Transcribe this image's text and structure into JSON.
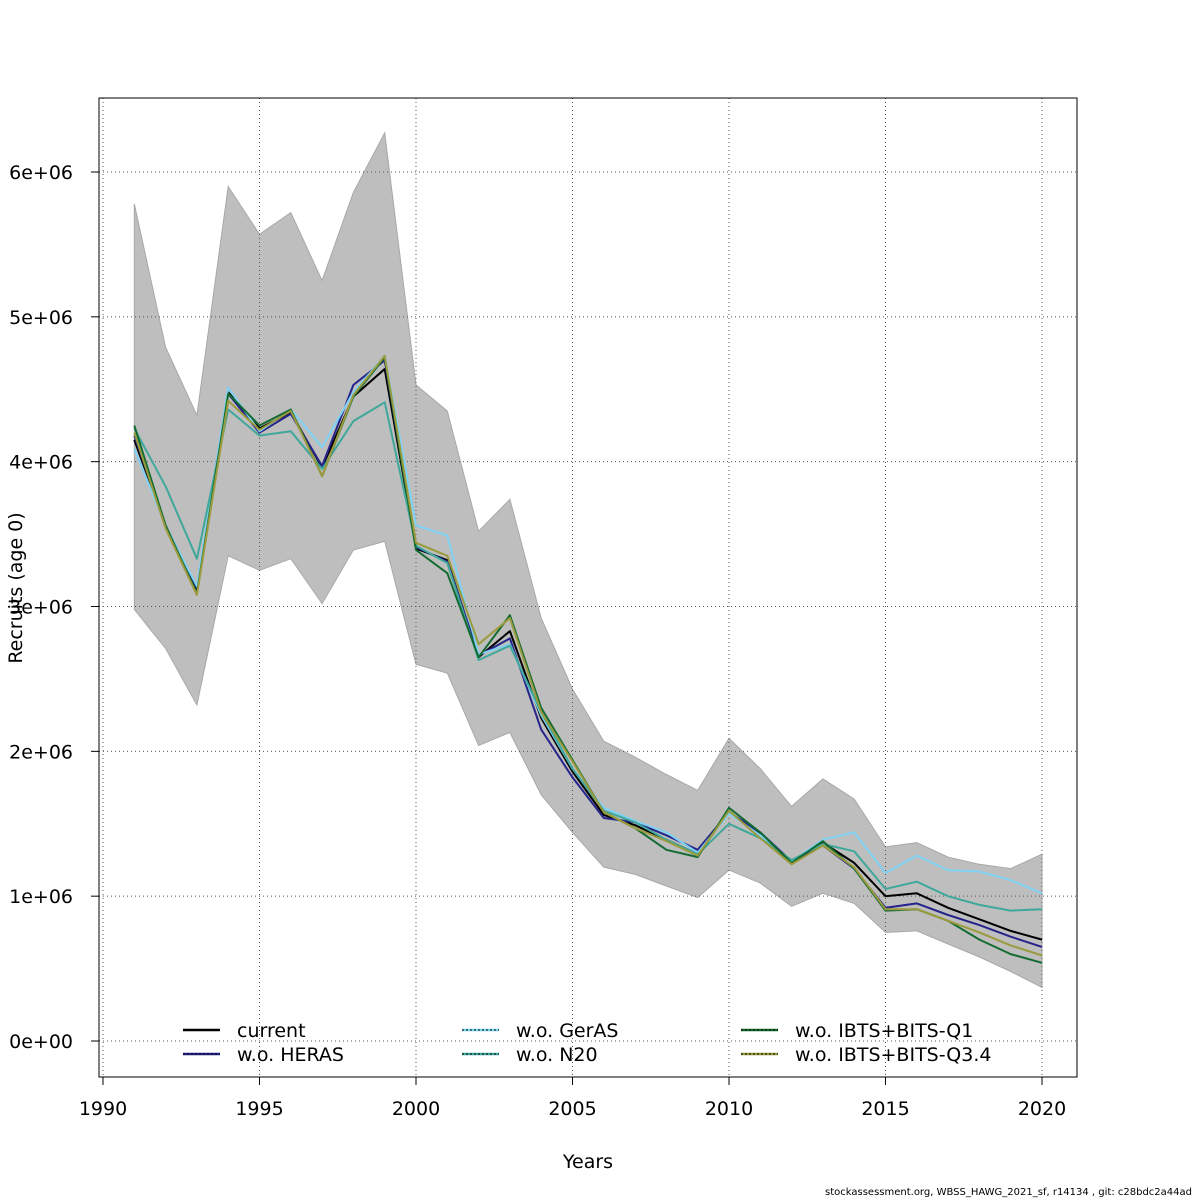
{
  "chart_data": {
    "type": "line",
    "title": "",
    "xlabel": "Years",
    "ylabel": "Recruits (age 0)",
    "xlim": [
      1990,
      2021
    ],
    "ylim": [
      -250000,
      6500000
    ],
    "xticks": [
      1990,
      1995,
      2000,
      2005,
      2010,
      2015,
      2020
    ],
    "yticks": [
      0,
      1000000,
      2000000,
      3000000,
      4000000,
      5000000,
      6000000
    ],
    "ytick_labels": [
      "0e+00",
      "1e+06",
      "2e+06",
      "3e+06",
      "4e+06",
      "5e+06",
      "6e+06"
    ],
    "grid": true,
    "legend_position": "bottom",
    "x": [
      1991,
      1992,
      1993,
      1994,
      1995,
      1996,
      1997,
      1998,
      1999,
      2000,
      2001,
      2002,
      2003,
      2004,
      2005,
      2006,
      2007,
      2008,
      2009,
      2010,
      2011,
      2012,
      2013,
      2014,
      2015,
      2016,
      2017,
      2018,
      2019,
      2020
    ],
    "confidence_band": {
      "color": "#bebebe",
      "lower": [
        2980000,
        2710000,
        2320000,
        3350000,
        3250000,
        3330000,
        3020000,
        3390000,
        3450000,
        2600000,
        2540000,
        2040000,
        2130000,
        1700000,
        1440000,
        1200000,
        1150000,
        1070000,
        990000,
        1180000,
        1090000,
        930000,
        1020000,
        950000,
        750000,
        760000,
        670000,
        580000,
        480000,
        370000
      ],
      "upper": [
        5780000,
        4790000,
        4320000,
        5900000,
        5570000,
        5720000,
        5250000,
        5860000,
        6270000,
        4530000,
        4350000,
        3520000,
        3740000,
        2920000,
        2430000,
        2070000,
        1960000,
        1840000,
        1730000,
        2090000,
        1880000,
        1620000,
        1810000,
        1670000,
        1340000,
        1370000,
        1270000,
        1220000,
        1190000,
        1290000
      ]
    },
    "series": [
      {
        "name": "current",
        "color": "#000000",
        "dash": "",
        "values": [
          4150000,
          3560000,
          3120000,
          4480000,
          4230000,
          4340000,
          3960000,
          4450000,
          4640000,
          3400000,
          3320000,
          2650000,
          2830000,
          2230000,
          1860000,
          1560000,
          1490000,
          1390000,
          1290000,
          1580000,
          1430000,
          1230000,
          1370000,
          1230000,
          1000000,
          1020000,
          920000,
          840000,
          760000,
          700000
        ]
      },
      {
        "name": "w.o. HERAS",
        "color": "#26248a",
        "dash": "",
        "values": [
          4180000,
          3560000,
          3130000,
          4470000,
          4200000,
          4330000,
          3970000,
          4530000,
          4700000,
          3410000,
          3310000,
          2660000,
          2780000,
          2150000,
          1820000,
          1540000,
          1510000,
          1420000,
          1320000,
          1580000,
          1440000,
          1240000,
          1350000,
          1190000,
          920000,
          950000,
          870000,
          800000,
          720000,
          650000
        ]
      },
      {
        "name": "w.o. GerAS",
        "color": "#7fd2f4",
        "dash": "",
        "values": [
          4090000,
          3560000,
          3140000,
          4510000,
          4210000,
          4360000,
          4100000,
          4480000,
          4730000,
          3560000,
          3490000,
          2670000,
          2740000,
          2250000,
          1880000,
          1610000,
          1520000,
          1440000,
          1300000,
          1570000,
          1420000,
          1240000,
          1390000,
          1440000,
          1160000,
          1280000,
          1180000,
          1170000,
          1110000,
          1020000
        ]
      },
      {
        "name": "w.o. N20",
        "color": "#3fa89b",
        "dash": "",
        "values": [
          4230000,
          3830000,
          3330000,
          4360000,
          4180000,
          4210000,
          3950000,
          4280000,
          4410000,
          3420000,
          3300000,
          2630000,
          2730000,
          2270000,
          1880000,
          1590000,
          1510000,
          1390000,
          1290000,
          1500000,
          1400000,
          1250000,
          1360000,
          1310000,
          1050000,
          1100000,
          1000000,
          940000,
          900000,
          910000
        ]
      },
      {
        "name": "w.o. IBTS+BITS-Q1",
        "color": "#136b31",
        "dash": "",
        "values": [
          4250000,
          3560000,
          3090000,
          4470000,
          4250000,
          4360000,
          3900000,
          4450000,
          4720000,
          3390000,
          3230000,
          2650000,
          2940000,
          2300000,
          1940000,
          1580000,
          1470000,
          1320000,
          1270000,
          1610000,
          1440000,
          1230000,
          1380000,
          1190000,
          900000,
          910000,
          830000,
          700000,
          600000,
          540000
        ]
      },
      {
        "name": "w.o. IBTS+BITS-Q3.4",
        "color": "#9b9a3c",
        "dash": "",
        "values": [
          4200000,
          3540000,
          3080000,
          4420000,
          4220000,
          4350000,
          3900000,
          4460000,
          4730000,
          3440000,
          3350000,
          2740000,
          2920000,
          2270000,
          1930000,
          1580000,
          1470000,
          1380000,
          1280000,
          1590000,
          1400000,
          1220000,
          1350000,
          1200000,
          910000,
          910000,
          830000,
          750000,
          660000,
          590000
        ]
      }
    ]
  },
  "footer": "stockassessment.org, WBSS_HAWG_2021_sf, r14134 , git: c28bdc2a44ad"
}
